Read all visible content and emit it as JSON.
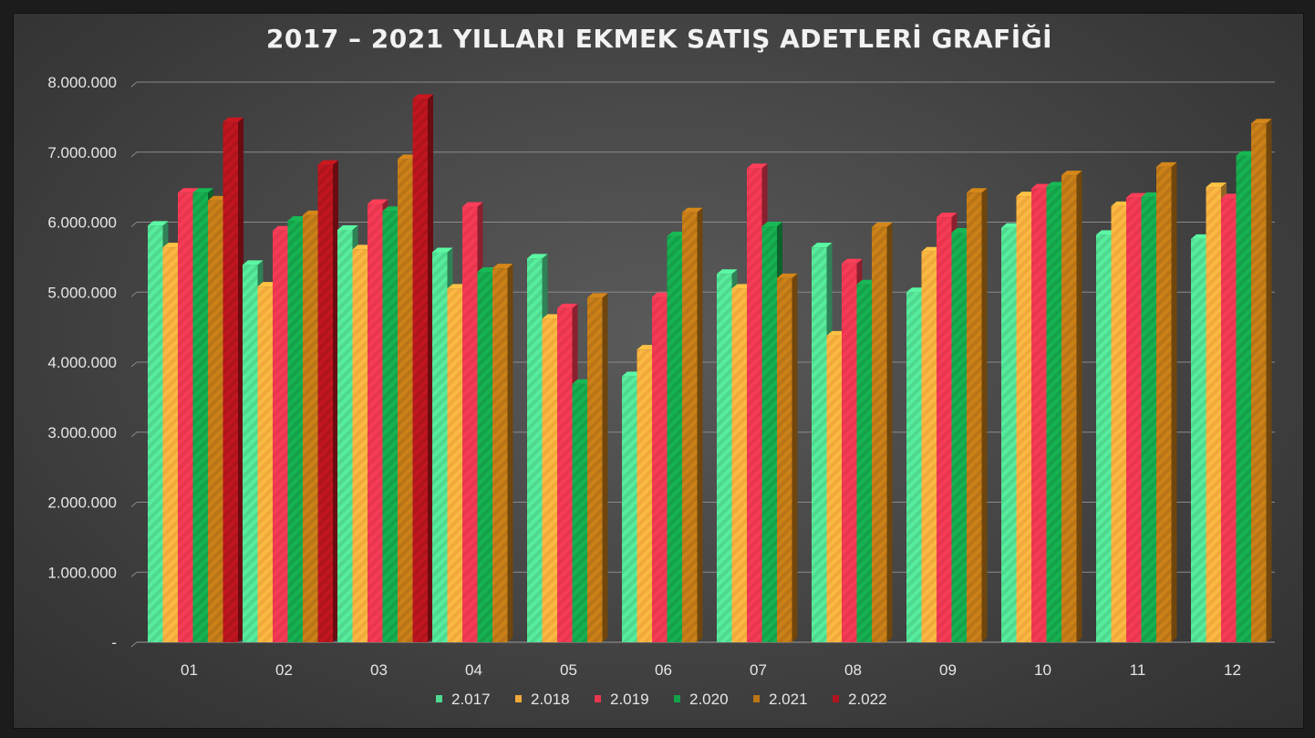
{
  "chart_data": {
    "type": "bar",
    "title": "2017 – 2021 YILLARI EKMEK SATIŞ ADETLERİ GRAFİĞİ",
    "xlabel": "",
    "ylabel": "",
    "categories": [
      "01",
      "02",
      "03",
      "04",
      "05",
      "06",
      "07",
      "08",
      "09",
      "10",
      "11",
      "12"
    ],
    "y_ticks": [
      "-",
      "1.000.000",
      "2.000.000",
      "3.000.000",
      "4.000.000",
      "5.000.000",
      "6.000.000",
      "7.000.000",
      "8.000.000"
    ],
    "ylim": [
      0,
      8000000
    ],
    "grid": true,
    "legend_position": "bottom",
    "series": [
      {
        "name": "2.017",
        "color": "#4fd88f",
        "values": [
          5950000,
          5390000,
          5890000,
          5570000,
          5480000,
          3800000,
          5260000,
          5640000,
          5000000,
          5920000,
          5820000,
          5760000
        ]
      },
      {
        "name": "2.018",
        "color": "#f2a93b",
        "values": [
          5640000,
          5080000,
          5610000,
          5050000,
          4620000,
          4180000,
          5050000,
          4380000,
          5580000,
          6370000,
          6230000,
          6500000
        ]
      },
      {
        "name": "2.019",
        "color": "#e8364e",
        "values": [
          6420000,
          5880000,
          6260000,
          6220000,
          4770000,
          4930000,
          6770000,
          5410000,
          6070000,
          6480000,
          6350000,
          6340000
        ]
      },
      {
        "name": "2.020",
        "color": "#14a14a",
        "values": [
          6420000,
          6020000,
          6160000,
          5290000,
          3690000,
          5800000,
          5940000,
          5110000,
          5850000,
          6510000,
          6360000,
          6950000
        ]
      },
      {
        "name": "2.021",
        "color": "#b97516",
        "values": [
          6310000,
          6100000,
          6900000,
          5340000,
          4920000,
          6140000,
          5200000,
          5930000,
          6420000,
          6670000,
          6790000,
          7410000
        ]
      },
      {
        "name": "2.022",
        "color": "#b0141c",
        "values": [
          7430000,
          6820000,
          7760000,
          null,
          null,
          null,
          null,
          null,
          null,
          null,
          null,
          null
        ]
      }
    ]
  }
}
